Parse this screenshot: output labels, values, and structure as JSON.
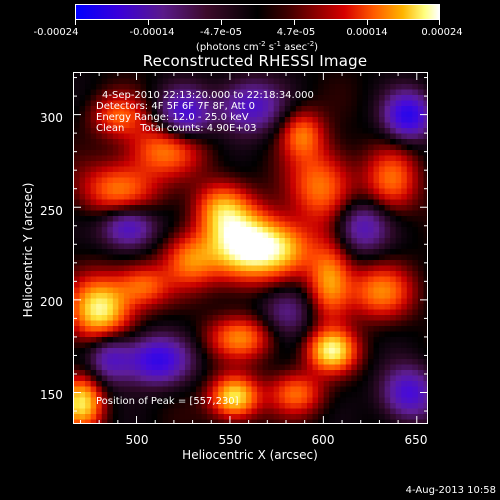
{
  "colorbar": {
    "ticks": [
      "-0.00024",
      "-0.00014",
      "-4.7e-05",
      "4.7e-05",
      "0.00014",
      "0.00024"
    ],
    "units_base": "(photons cm",
    "units_exp1": "-2",
    "units_mid": " s",
    "units_exp2": "-1",
    "units_mid2": " asec",
    "units_exp3": "-2",
    "units_end": ")"
  },
  "title": "Reconstructed RHESSI Image",
  "info": {
    "time": "4-Sep-2010 22:13:20.000 to 22:18:34.000",
    "detectors": "Detectors: 4F 5F 6F 7F 8F, Att 0",
    "energy": "Energy Range: 12.0 - 25.0 keV",
    "clean": "Clean     Total counts: 4.90E+03"
  },
  "peak": "Position of Peak = [557,230]",
  "chart_data": {
    "type": "heatmap",
    "title": "Reconstructed RHESSI Image",
    "xlabel": "Heliocentric X (arcsec)",
    "ylabel": "Heliocentric Y (arcsec)",
    "xlim": [
      466,
      656
    ],
    "ylim": [
      133,
      323
    ],
    "xticks": [
      500,
      550,
      600,
      650
    ],
    "yticks": [
      150,
      200,
      250,
      300
    ],
    "colorbar_range": [
      -0.00024,
      0.00024
    ],
    "peak_position": [
      557,
      230
    ],
    "sources": [
      {
        "x": 557,
        "y": 230,
        "amp": 1.0,
        "sx": 14,
        "sy": 13
      },
      {
        "x": 545,
        "y": 250,
        "amp": 0.55,
        "sx": 10,
        "sy": 10
      },
      {
        "x": 578,
        "y": 228,
        "amp": 0.55,
        "sx": 12,
        "sy": 10
      },
      {
        "x": 528,
        "y": 222,
        "amp": 0.5,
        "sx": 10,
        "sy": 10
      },
      {
        "x": 490,
        "y": 260,
        "amp": 0.55,
        "sx": 14,
        "sy": 10
      },
      {
        "x": 515,
        "y": 282,
        "amp": 0.55,
        "sx": 14,
        "sy": 10
      },
      {
        "x": 598,
        "y": 262,
        "amp": 0.55,
        "sx": 12,
        "sy": 14
      },
      {
        "x": 636,
        "y": 265,
        "amp": 0.5,
        "sx": 10,
        "sy": 12
      },
      {
        "x": 480,
        "y": 195,
        "amp": 0.9,
        "sx": 11,
        "sy": 12
      },
      {
        "x": 503,
        "y": 208,
        "amp": 0.5,
        "sx": 10,
        "sy": 8
      },
      {
        "x": 603,
        "y": 210,
        "amp": 0.65,
        "sx": 8,
        "sy": 14
      },
      {
        "x": 630,
        "y": 205,
        "amp": 0.55,
        "sx": 12,
        "sy": 10
      },
      {
        "x": 604,
        "y": 173,
        "amp": 0.85,
        "sx": 9,
        "sy": 8
      },
      {
        "x": 555,
        "y": 180,
        "amp": 0.55,
        "sx": 12,
        "sy": 8
      },
      {
        "x": 552,
        "y": 148,
        "amp": 0.85,
        "sx": 9,
        "sy": 8
      },
      {
        "x": 585,
        "y": 150,
        "amp": 0.5,
        "sx": 10,
        "sy": 8
      },
      {
        "x": 470,
        "y": 145,
        "amp": 0.8,
        "sx": 8,
        "sy": 10
      },
      {
        "x": 588,
        "y": 290,
        "amp": 0.5,
        "sx": 8,
        "sy": 9
      },
      {
        "x": 490,
        "y": 300,
        "amp": 0.45,
        "sx": 10,
        "sy": 8
      },
      {
        "x": 525,
        "y": 300,
        "amp": -0.6,
        "sx": 10,
        "sy": 10
      },
      {
        "x": 560,
        "y": 305,
        "amp": -0.55,
        "sx": 12,
        "sy": 10
      },
      {
        "x": 645,
        "y": 300,
        "amp": -0.75,
        "sx": 9,
        "sy": 9
      },
      {
        "x": 495,
        "y": 240,
        "amp": -0.6,
        "sx": 10,
        "sy": 8
      },
      {
        "x": 620,
        "y": 240,
        "amp": -0.5,
        "sx": 10,
        "sy": 10
      },
      {
        "x": 510,
        "y": 168,
        "amp": -0.7,
        "sx": 12,
        "sy": 9
      },
      {
        "x": 645,
        "y": 150,
        "amp": -0.6,
        "sx": 10,
        "sy": 10
      },
      {
        "x": 485,
        "y": 170,
        "amp": -0.5,
        "sx": 8,
        "sy": 10
      },
      {
        "x": 580,
        "y": 195,
        "amp": -0.35,
        "sx": 10,
        "sy": 10
      }
    ]
  },
  "timestamp": "4-Aug-2013 10:58"
}
